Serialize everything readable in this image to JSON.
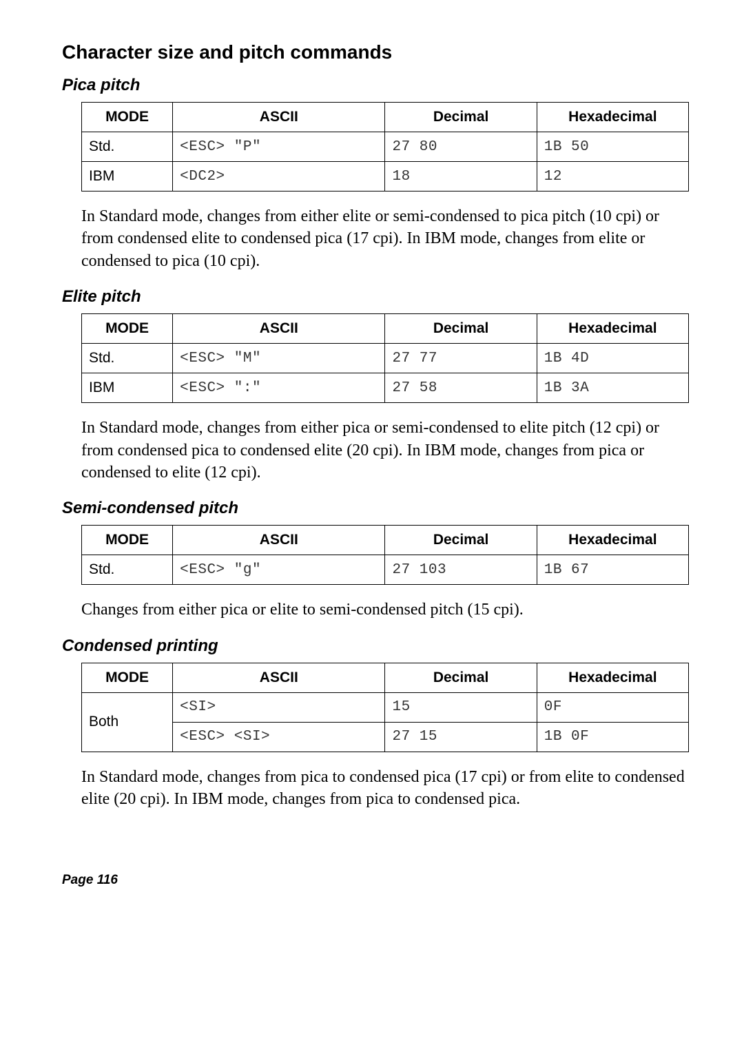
{
  "page_title": "Character size and pitch commands",
  "columns": [
    "MODE",
    "ASCII",
    "Decimal",
    "Hexadecimal"
  ],
  "sections": [
    {
      "heading": "Pica pitch",
      "rows": [
        {
          "mode": "Std.",
          "ascii": "<ESC> \"P\"",
          "dec": "27 80",
          "hex": "1B 50",
          "rowspan": 1
        },
        {
          "mode": "IBM",
          "ascii": "<DC2>",
          "dec": "18",
          "hex": "12",
          "rowspan": 1
        }
      ],
      "body": "In Standard mode, changes from either elite or semi-condensed to pica pitch (10 cpi) or from condensed elite to condensed pica (17 cpi). In IBM mode, changes from elite or condensed to pica (10 cpi)."
    },
    {
      "heading": "Elite pitch",
      "rows": [
        {
          "mode": "Std.",
          "ascii": "<ESC> \"M\"",
          "dec": "27 77",
          "hex": "1B 4D",
          "rowspan": 1
        },
        {
          "mode": "IBM",
          "ascii": "<ESC> \":\"",
          "dec": "27 58",
          "hex": "1B 3A",
          "rowspan": 1
        }
      ],
      "body": "In Standard mode, changes from either pica or semi-condensed to elite pitch (12 cpi) or from condensed pica to condensed elite (20 cpi). In IBM mode, changes from pica or condensed to elite (12 cpi)."
    },
    {
      "heading": "Semi-condensed pitch",
      "rows": [
        {
          "mode": "Std.",
          "ascii": "<ESC> \"g\"",
          "dec": "27 103",
          "hex": "1B 67",
          "rowspan": 1
        }
      ],
      "body": "Changes from either pica or elite to semi-condensed pitch (15 cpi)."
    },
    {
      "heading": "Condensed printing",
      "rows": [
        {
          "mode": "Both",
          "ascii": "<SI>",
          "dec": "15",
          "hex": "0F",
          "rowspan": 2
        },
        {
          "mode": "",
          "ascii": "<ESC> <SI>",
          "dec": "27 15",
          "hex": "1B 0F",
          "rowspan": 0
        }
      ],
      "body": "In Standard mode, changes from pica to condensed pica (17 cpi) or from elite to condensed elite (20 cpi). In IBM mode, changes from pica to condensed pica."
    }
  ],
  "footer": "Page 116"
}
